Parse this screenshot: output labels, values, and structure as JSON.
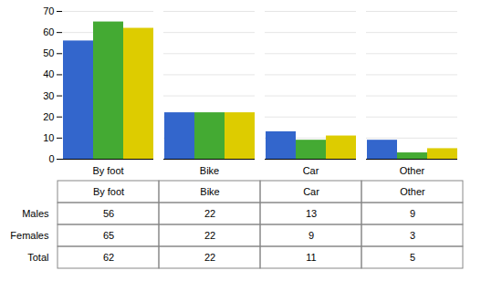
{
  "chart_data": {
    "type": "bar",
    "categories": [
      "By foot",
      "Bike",
      "Car",
      "Other"
    ],
    "series": [
      {
        "name": "Males",
        "color": "#3366CC",
        "values": [
          56,
          22,
          13,
          9
        ]
      },
      {
        "name": "Females",
        "color": "#44AA33",
        "values": [
          65,
          22,
          9,
          3
        ]
      },
      {
        "name": "Total",
        "color": "#DDCC00",
        "values": [
          62,
          22,
          11,
          5
        ]
      }
    ],
    "ylim": [
      0,
      70
    ],
    "yticks": [
      0,
      10,
      20,
      30,
      40,
      50,
      60,
      70
    ],
    "grid": true
  }
}
